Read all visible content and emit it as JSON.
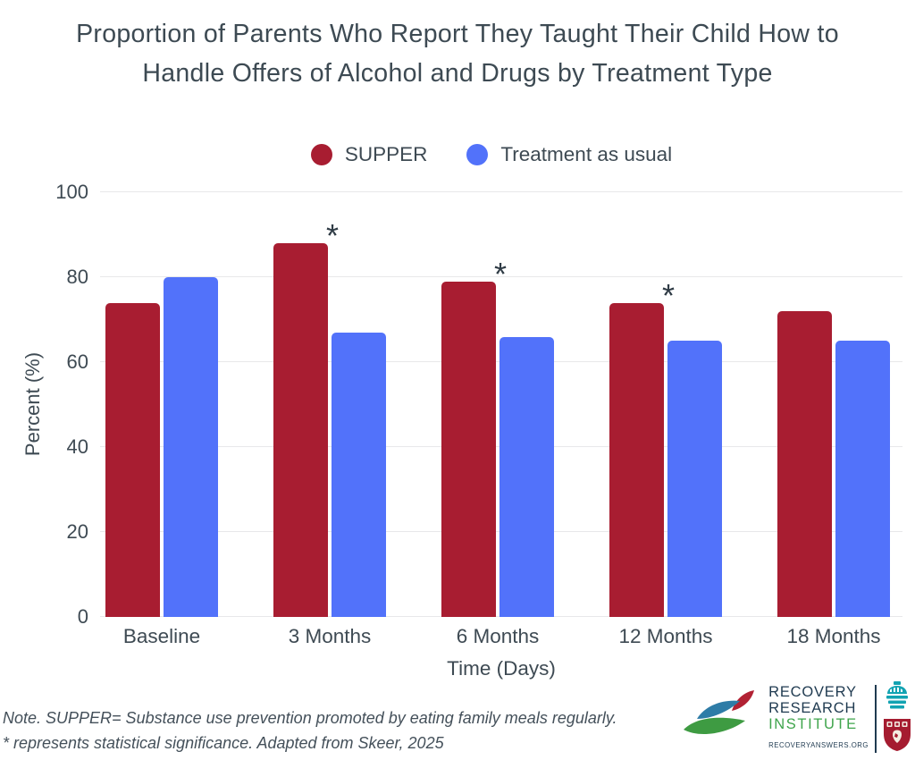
{
  "title": {
    "line1": "Proportion of Parents Who Report They Taught Their Child How to",
    "line2": "Handle Offers of Alcohol and Drugs by Treatment Type"
  },
  "chart_data": {
    "type": "bar",
    "title": "Proportion of Parents Who Report They Taught Their Child How to Handle Offers of Alcohol and Drugs by Treatment Type",
    "categories": [
      "Baseline",
      "3 Months",
      "6 Months",
      "12 Months",
      "18 Months"
    ],
    "series": [
      {
        "name": "SUPPER",
        "color": "#A81D31",
        "values": [
          74,
          88,
          79,
          74,
          72
        ]
      },
      {
        "name": "Treatment as usual",
        "color": "#5272FA",
        "values": [
          80,
          67,
          66,
          65,
          65
        ]
      }
    ],
    "significance": [
      "",
      "*",
      "*",
      "*",
      ""
    ],
    "significance_applies_to": "SUPPER",
    "xlabel": "Time (Days)",
    "ylabel": "Percent (%)",
    "ylim": [
      0,
      100
    ],
    "yticks": [
      0,
      20,
      40,
      60,
      80,
      100
    ],
    "grid": true,
    "legend_position": "top-center"
  },
  "note": {
    "line1": "Note. SUPPER= Substance use prevention promoted by eating family meals regularly.",
    "line2": "* represents statistical significance. Adapted from Skeer, 2025"
  },
  "logo": {
    "line1": "RECOVERY",
    "line2": "RESEARCH",
    "line3": "INSTITUTE",
    "website": "RECOVERYANSWERS.ORG",
    "colors": {
      "navy": "#1F3A50",
      "green": "#3FA44C",
      "teal": "#12A3B2",
      "crimson": "#A51C30",
      "leaf_blue": "#2E7CA7",
      "leaf_red": "#B22234",
      "leaf_green": "#3E9B42"
    }
  },
  "colors": {
    "text": "#3E4A53",
    "gridline": "#E8E8EA",
    "supper_red": "#A81D31",
    "tau_blue": "#5272FA"
  }
}
